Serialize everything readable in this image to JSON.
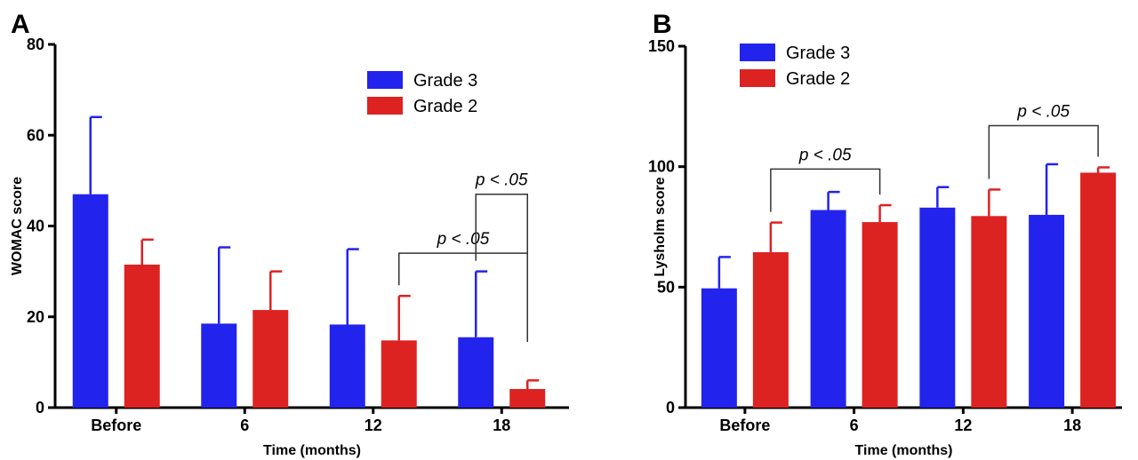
{
  "chart_data": [
    {
      "type": "bar",
      "panel_label": "A",
      "categories": [
        "Before",
        "6",
        "12",
        "18"
      ],
      "xlabel": "Time (months)",
      "ylabel": "WOMAC  score",
      "ylim": [
        0,
        80
      ],
      "yticks": [
        0,
        20,
        40,
        60,
        80
      ],
      "grid": false,
      "legend_position": "top-right",
      "series": [
        {
          "name": "Grade 3",
          "color": "#2323ee",
          "values": [
            47,
            18.5,
            18.3,
            15.5
          ],
          "error": [
            17,
            16.8,
            16.6,
            14.5
          ]
        },
        {
          "name": "Grade 2",
          "color": "#dd2222",
          "values": [
            31.5,
            21.5,
            14.8,
            4.1
          ],
          "error": [
            5.5,
            8.5,
            9.8,
            1.9
          ]
        }
      ],
      "annotations": [
        {
          "text": "p < .05",
          "from": [
            "12",
            "Grade 2"
          ],
          "to": [
            "18",
            "Grade 2"
          ],
          "level": 34
        },
        {
          "text": "p < .05",
          "from": [
            "18",
            "Grade 3"
          ],
          "to": [
            "18",
            "Grade 2"
          ],
          "level": 47
        }
      ]
    },
    {
      "type": "bar",
      "panel_label": "B",
      "categories": [
        "Before",
        "6",
        "12",
        "18"
      ],
      "xlabel": "Time (months)",
      "ylabel": "Lysholm score",
      "ylim": [
        0,
        150
      ],
      "yticks": [
        0,
        50,
        100,
        150
      ],
      "grid": false,
      "legend_position": "top-left",
      "series": [
        {
          "name": "Grade 3",
          "color": "#2323ee",
          "values": [
            49.5,
            82,
            83,
            80
          ],
          "error": [
            13,
            7.5,
            8.5,
            21
          ]
        },
        {
          "name": "Grade 2",
          "color": "#dd2222",
          "values": [
            64.5,
            77,
            79.5,
            97.5
          ],
          "error": [
            12.3,
            7,
            11,
            2.2
          ]
        }
      ],
      "annotations": [
        {
          "text": "p < .05",
          "from": [
            "Before",
            "Grade 2"
          ],
          "to": [
            "6",
            "Grade 2"
          ],
          "level": 99
        },
        {
          "text": "p < .05",
          "from": [
            "12",
            "Grade 2"
          ],
          "to": [
            "18",
            "Grade 2"
          ],
          "level": 117
        }
      ]
    }
  ]
}
